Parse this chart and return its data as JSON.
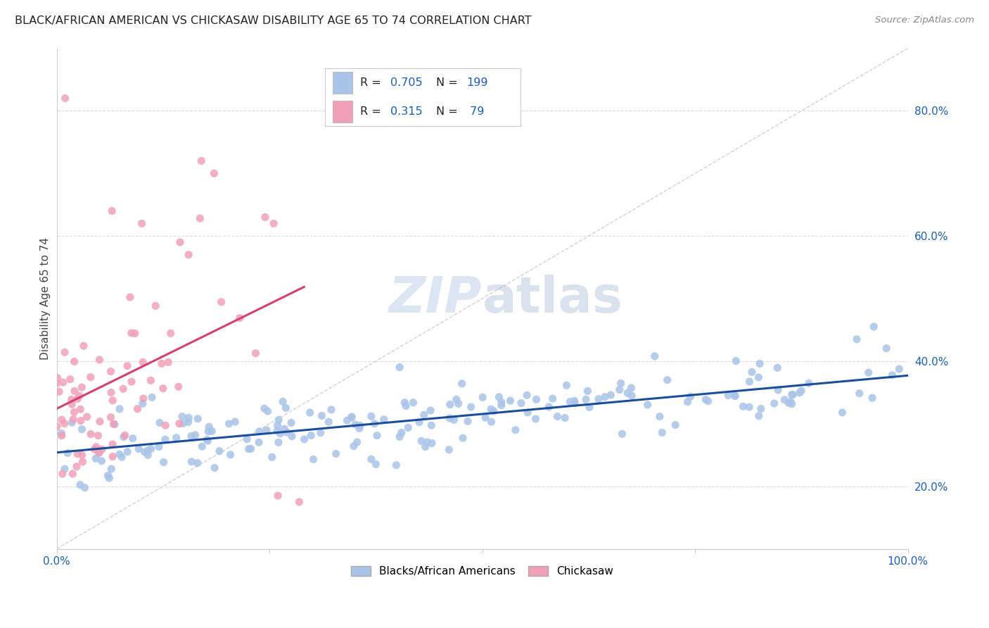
{
  "title": "BLACK/AFRICAN AMERICAN VS CHICKASAW DISABILITY AGE 65 TO 74 CORRELATION CHART",
  "source": "Source: ZipAtlas.com",
  "ylabel": "Disability Age 65 to 74",
  "legend_blue_label": "Blacks/African Americans",
  "legend_pink_label": "Chickasaw",
  "legend_blue_r": "0.705",
  "legend_blue_n": "199",
  "legend_pink_r": "0.315",
  "legend_pink_n": " 79",
  "blue_color": "#aac4e8",
  "pink_color": "#f0a0b8",
  "blue_line_color": "#1a4e9c",
  "pink_line_color": "#d44070",
  "diag_color": "#d8c8c8",
  "background": "#ffffff",
  "grid_color": "#dddddd",
  "title_color": "#222222",
  "watermark_zip_color": "#c0d0e8",
  "watermark_atlas_color": "#3060a0",
  "legend_text_color": "#222222",
  "legend_val_color": "#1a5fb4",
  "blue_seed": 42,
  "pink_seed": 123,
  "ymin": 0.1,
  "ymax": 0.9,
  "xmin": 0.0,
  "xmax": 1.0,
  "yticks_right": [
    0.2,
    0.4,
    0.6,
    0.8
  ],
  "ytick_labels_right": [
    "20.0%",
    "40.0%",
    "60.0%",
    "80.0%"
  ],
  "xtick_positions": [
    0.0,
    0.25,
    0.5,
    0.75,
    1.0
  ],
  "xtick_labels": [
    "0.0%",
    "",
    "",
    "",
    "100.0%"
  ]
}
